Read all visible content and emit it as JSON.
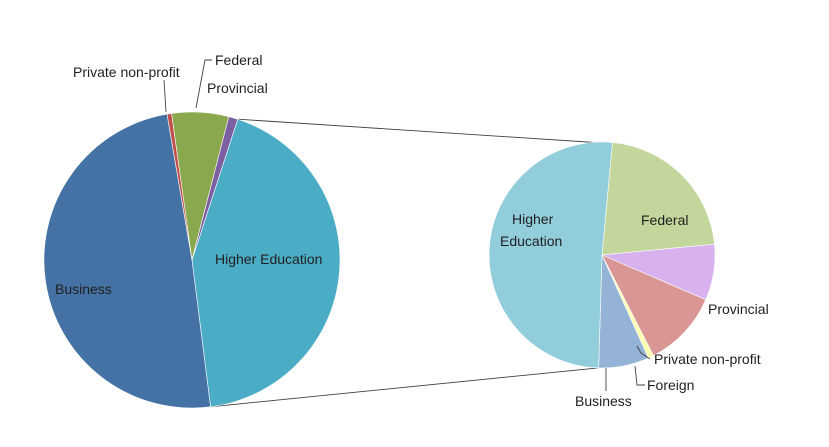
{
  "chart_data": [
    {
      "type": "pie",
      "title": "",
      "slices": [
        {
          "label": "Higher Education",
          "value": 43.0,
          "color": "#4bacc6"
        },
        {
          "label": "Business",
          "value": 49.3,
          "color": "#4472a4"
        },
        {
          "label": "Private non-profit",
          "value": 0.5,
          "color": "#c0504d"
        },
        {
          "label": "Federal",
          "value": 6.2,
          "color": "#8aa84e"
        },
        {
          "label": "Provincial",
          "value": 1.0,
          "color": "#7b5fa2"
        }
      ]
    },
    {
      "type": "pie",
      "title": "",
      "slices": [
        {
          "label": "Federal",
          "value": 22.0,
          "color": "#c3d69b"
        },
        {
          "label": "Provincial",
          "value": 8.0,
          "color": "#d7b2ee"
        },
        {
          "label": "Private non-profit",
          "value": 11.0,
          "color": "#da9694"
        },
        {
          "label": "Foreign",
          "value": 0.8,
          "color": "#ffffb2"
        },
        {
          "label": "Business",
          "value": 7.2,
          "color": "#95b3d7"
        },
        {
          "label": "Higher Education",
          "value": 51.0,
          "color": "#92cddc"
        }
      ]
    }
  ]
}
